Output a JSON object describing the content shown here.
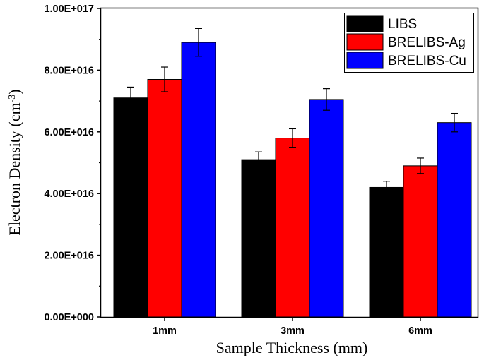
{
  "chart_data": {
    "type": "bar",
    "title": "",
    "xlabel": "Sample Thickness (mm)",
    "ylabel": {
      "prefix": "Electron Density (cm",
      "exponent": "-3",
      "suffix": ")"
    },
    "categories": [
      "1mm",
      "3mm",
      "6mm"
    ],
    "ylim": [
      0,
      1e+17
    ],
    "y_ticks": [
      {
        "value": 0,
        "label": "0.00E+000"
      },
      {
        "value": 2e+16,
        "label": "2.00E+016"
      },
      {
        "value": 4e+16,
        "label": "4.00E+016"
      },
      {
        "value": 6e+16,
        "label": "6.00E+016"
      },
      {
        "value": 8e+16,
        "label": "8.00E+016"
      },
      {
        "value": 1e+17,
        "label": "1.00E+017"
      }
    ],
    "series": [
      {
        "name": "LIBS",
        "color": "#000000",
        "values": [
          7.1e+16,
          5.1e+16,
          4.2e+16
        ],
        "errors": [
          3500000000000000.0,
          2500000000000000.0,
          2000000000000000.0
        ]
      },
      {
        "name": "BRELIBS-Ag",
        "color": "#ff0000",
        "values": [
          7.7e+16,
          5.8e+16,
          4.9e+16
        ],
        "errors": [
          4000000000000000.0,
          3000000000000000.0,
          2500000000000000.0
        ]
      },
      {
        "name": "BRELIBS-Cu",
        "color": "#0000ff",
        "values": [
          8.9e+16,
          7.05e+16,
          6.3e+16
        ],
        "errors": [
          4500000000000000.0,
          3500000000000000.0,
          3000000000000000.0
        ]
      }
    ],
    "legend_position": "top-right",
    "grid": false
  }
}
